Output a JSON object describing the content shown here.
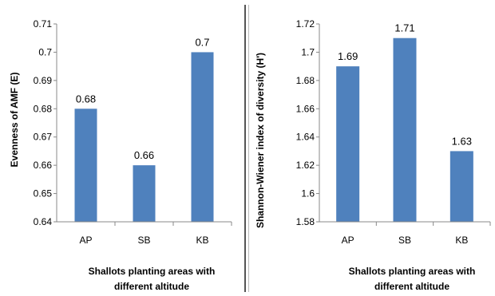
{
  "chart_data": [
    {
      "type": "bar",
      "categories": [
        "AP",
        "SB",
        "KB"
      ],
      "values": [
        0.68,
        0.66,
        0.7
      ],
      "data_labels": [
        "0.68",
        "0.66",
        "0.7"
      ],
      "y_ticks": [
        "0.71",
        "0.7",
        "0.69",
        "0.68",
        "0.67",
        "0.66",
        "0.65",
        "0.64"
      ],
      "ylim": [
        0.64,
        0.71
      ],
      "ylabel": "Evenness of AMF (E)",
      "xlabel_line1": "Shallots planting areas with",
      "xlabel_line2": "different altitude",
      "grid": false,
      "bar_color": "#4f81bd"
    },
    {
      "type": "bar",
      "categories": [
        "AP",
        "SB",
        "KB"
      ],
      "values": [
        1.69,
        1.71,
        1.63
      ],
      "data_labels": [
        "1.69",
        "1.71",
        "1.63"
      ],
      "y_ticks": [
        "1.72",
        "1.7",
        "1.68",
        "1.66",
        "1.64",
        "1.62",
        "1.6",
        "1.58"
      ],
      "ylim": [
        1.58,
        1.72
      ],
      "ylabel": "Shannon-Wiener  index of diversity (H')",
      "xlabel_line1": "Shallots planting areas with",
      "xlabel_line2": "different altitude",
      "grid": false,
      "bar_color": "#4f81bd"
    }
  ]
}
